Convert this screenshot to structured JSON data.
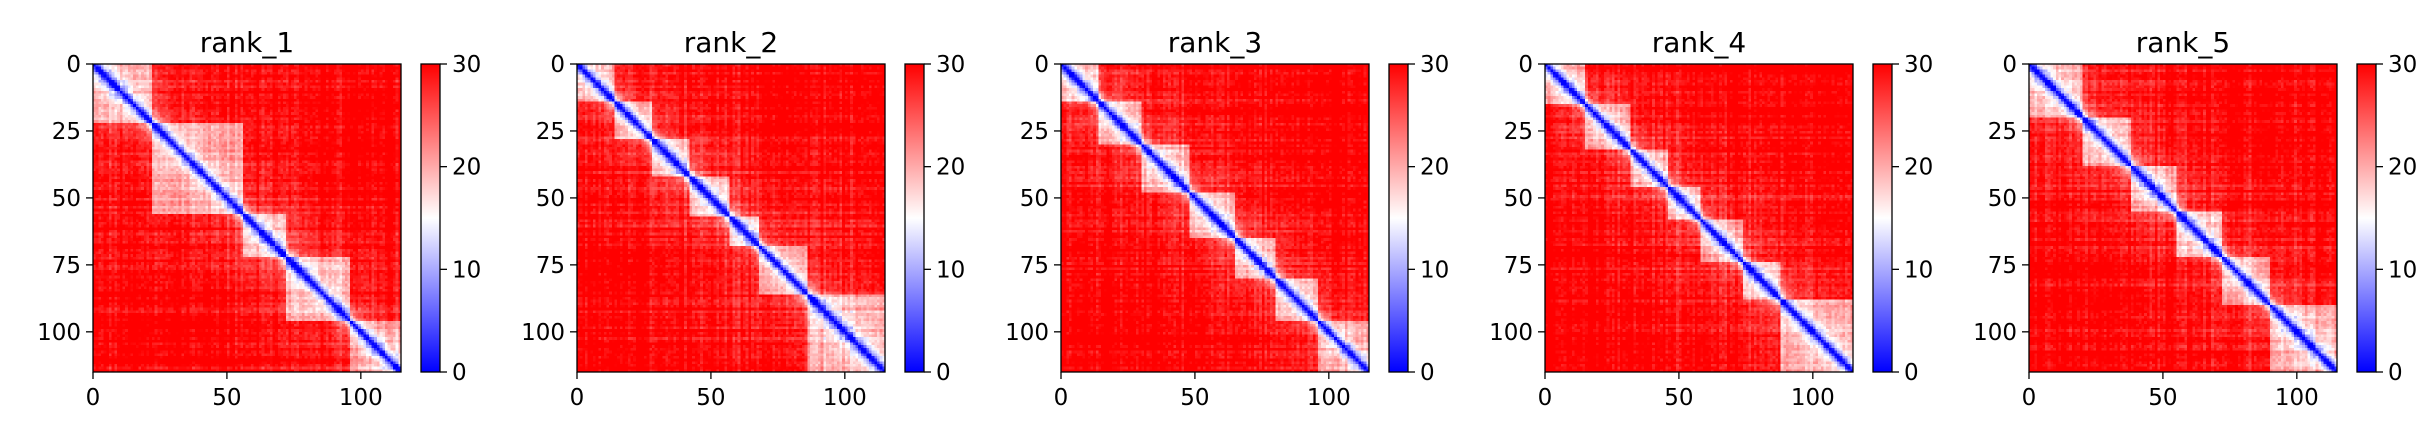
{
  "chart_data": [
    {
      "type": "heatmap",
      "title": "rank_1",
      "seed": 11,
      "xticks": [
        0,
        50,
        100
      ],
      "yticks": [
        0,
        25,
        50,
        75,
        100
      ],
      "xlim": [
        0,
        115
      ],
      "ylim": [
        115,
        0
      ],
      "colorbar": {
        "ticks": [
          0,
          10,
          20,
          30
        ],
        "vmin": 0,
        "vmax": 30,
        "colormap": "bwr"
      },
      "domain_boundaries": [
        0,
        22,
        56,
        72,
        96,
        115
      ]
    },
    {
      "type": "heatmap",
      "title": "rank_2",
      "seed": 23,
      "xticks": [
        0,
        50,
        100
      ],
      "yticks": [
        0,
        25,
        50,
        75,
        100
      ],
      "xlim": [
        0,
        115
      ],
      "ylim": [
        115,
        0
      ],
      "colorbar": {
        "ticks": [
          0,
          10,
          20,
          30
        ],
        "vmin": 0,
        "vmax": 30,
        "colormap": "bwr"
      },
      "domain_boundaries": [
        0,
        14,
        28,
        42,
        57,
        68,
        86,
        115
      ]
    },
    {
      "type": "heatmap",
      "title": "rank_3",
      "seed": 37,
      "xticks": [
        0,
        50,
        100
      ],
      "yticks": [
        0,
        25,
        50,
        75,
        100
      ],
      "xlim": [
        0,
        115
      ],
      "ylim": [
        115,
        0
      ],
      "colorbar": {
        "ticks": [
          0,
          10,
          20,
          30
        ],
        "vmin": 0,
        "vmax": 30,
        "colormap": "bwr"
      },
      "domain_boundaries": [
        0,
        14,
        30,
        48,
        65,
        80,
        96,
        115
      ]
    },
    {
      "type": "heatmap",
      "title": "rank_4",
      "seed": 41,
      "xticks": [
        0,
        50,
        100
      ],
      "yticks": [
        0,
        25,
        50,
        75,
        100
      ],
      "xlim": [
        0,
        115
      ],
      "ylim": [
        115,
        0
      ],
      "colorbar": {
        "ticks": [
          0,
          10,
          20,
          30
        ],
        "vmin": 0,
        "vmax": 30,
        "colormap": "bwr"
      },
      "domain_boundaries": [
        0,
        15,
        32,
        46,
        58,
        74,
        88,
        115
      ]
    },
    {
      "type": "heatmap",
      "title": "rank_5",
      "seed": 53,
      "xticks": [
        0,
        50,
        100
      ],
      "yticks": [
        0,
        25,
        50,
        75,
        100
      ],
      "xlim": [
        0,
        115
      ],
      "ylim": [
        115,
        0
      ],
      "colorbar": {
        "ticks": [
          0,
          10,
          20,
          30
        ],
        "vmin": 0,
        "vmax": 30,
        "colormap": "bwr"
      },
      "domain_boundaries": [
        0,
        20,
        38,
        55,
        72,
        90,
        115
      ]
    }
  ]
}
